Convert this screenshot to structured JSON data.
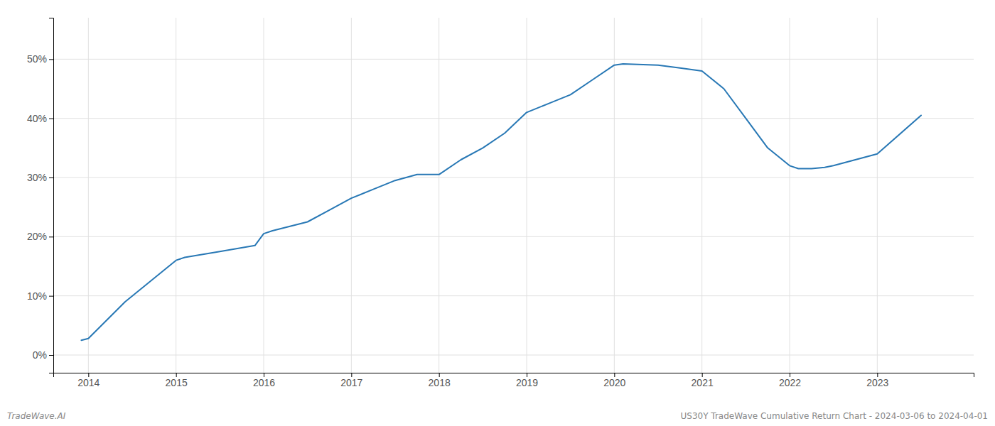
{
  "chart_data": {
    "type": "line",
    "x": [
      2013.92,
      2014.0,
      2014.42,
      2015.0,
      2015.1,
      2015.5,
      2015.9,
      2016.0,
      2016.1,
      2016.5,
      2016.75,
      2017.0,
      2017.25,
      2017.5,
      2017.75,
      2018.0,
      2018.25,
      2018.5,
      2018.75,
      2019.0,
      2019.25,
      2019.5,
      2019.75,
      2020.0,
      2020.1,
      2020.5,
      2020.75,
      2021.0,
      2021.25,
      2021.5,
      2021.75,
      2022.0,
      2022.1,
      2022.25,
      2022.4,
      2022.5,
      2022.75,
      2023.0,
      2023.5
    ],
    "values": [
      2.5,
      2.8,
      9.0,
      16.0,
      16.5,
      17.5,
      18.5,
      20.5,
      21.0,
      22.5,
      24.5,
      26.5,
      28.0,
      29.5,
      30.5,
      30.5,
      33.0,
      35.0,
      37.5,
      41.0,
      42.5,
      44.0,
      46.5,
      49.0,
      49.2,
      49.0,
      48.5,
      48.0,
      45.0,
      40.0,
      35.0,
      32.0,
      31.5,
      31.5,
      31.7,
      32.0,
      33.0,
      34.0,
      40.5
    ],
    "color": "#2878b5",
    "xlim": [
      2013.6,
      2024.1
    ],
    "ylim": [
      -3,
      57
    ],
    "xticks": [
      2014,
      2015,
      2016,
      2017,
      2018,
      2019,
      2020,
      2021,
      2022,
      2023
    ],
    "yticks": [
      {
        "value": 0,
        "label": "0%"
      },
      {
        "value": 10,
        "label": "10%"
      },
      {
        "value": 20,
        "label": "20%"
      },
      {
        "value": 30,
        "label": "30%"
      },
      {
        "value": 40,
        "label": "40%"
      },
      {
        "value": 50,
        "label": "50%"
      }
    ],
    "grid": true,
    "annotations": [
      "TradeWave.AI",
      "US30Y TradeWave Cumulative Return Chart - 2024-03-06 to 2024-04-01"
    ]
  }
}
